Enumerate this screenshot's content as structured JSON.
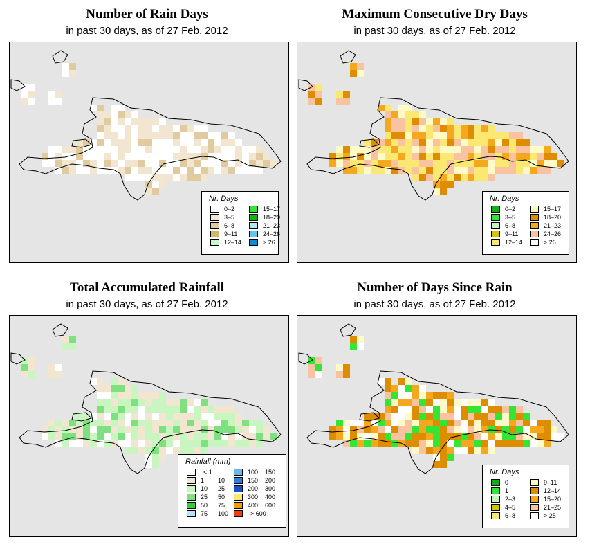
{
  "panels": [
    {
      "title": "Number of Rain Days",
      "subtitle": "in past 30 days, as of  27 Feb. 2012",
      "legend_title": "Nr. Days",
      "legend": [
        {
          "label": "0–2",
          "color": "#ffffff"
        },
        {
          "label": "3–5",
          "color": "#f2e6d0"
        },
        {
          "label": "6–8",
          "color": "#e0cba0"
        },
        {
          "label": "9–11",
          "color": "#d2b86b"
        },
        {
          "label": "12–14",
          "color": "#ccf7cc"
        },
        {
          "label": "15–17",
          "color": "#33e633"
        },
        {
          "label": "18–20",
          "color": "#11b511"
        },
        {
          "label": "21–23",
          "color": "#b3e5f5"
        },
        {
          "label": "24–26",
          "color": "#66c2ee"
        },
        {
          "label": "> 26",
          "color": "#0a8ed1"
        }
      ]
    },
    {
      "title": "Maximum Consecutive Dry Days",
      "subtitle": "in past 30 days, as of  27 Feb. 2012",
      "legend_title": "Nr. Days",
      "legend": [
        {
          "label": "0–2",
          "color": "#10b010"
        },
        {
          "label": "3–5",
          "color": "#33e633"
        },
        {
          "label": "6–8",
          "color": "#c6f5c6"
        },
        {
          "label": "9–11",
          "color": "#d4c400"
        },
        {
          "label": "12–14",
          "color": "#fae873"
        },
        {
          "label": "15–17",
          "color": "#fffac8"
        },
        {
          "label": "18–20",
          "color": "#de8c00"
        },
        {
          "label": "21–23",
          "color": "#f4a81e"
        },
        {
          "label": "24–26",
          "color": "#f9c2a0"
        },
        {
          "label": "> 26",
          "color": "#ffffff"
        }
      ]
    },
    {
      "title": "Total Accumulated Rainfall",
      "subtitle": "in past 30 days, as of  27 Feb. 2012",
      "legend_title": "Rainfall (mm)",
      "legend": [
        {
          "lo": "",
          "hi": "< 1",
          "color": "#ffffff"
        },
        {
          "lo": "1",
          "hi": "10",
          "color": "#f2e6d0"
        },
        {
          "lo": "10",
          "hi": "25",
          "color": "#c8f5c0"
        },
        {
          "lo": "25",
          "hi": "50",
          "color": "#7fe07f"
        },
        {
          "lo": "50",
          "hi": "75",
          "color": "#33cc33"
        },
        {
          "lo": "75",
          "hi": "100",
          "color": "#b3e5f5"
        },
        {
          "lo": "100",
          "hi": "150",
          "color": "#66b8ee"
        },
        {
          "lo": "150",
          "hi": "200",
          "color": "#2a7fe0"
        },
        {
          "lo": "200",
          "hi": "300",
          "color": "#1450c8"
        },
        {
          "lo": "300",
          "hi": "400",
          "color": "#fae873"
        },
        {
          "lo": "400",
          "hi": "600",
          "color": "#f59a00"
        },
        {
          "lo": "",
          "hi": "> 600",
          "color": "#f03c14"
        }
      ]
    },
    {
      "title": "Number of Days Since Rain",
      "subtitle": "in past 30 days, as of  27 Feb. 2012",
      "legend_title": "Nr. Days",
      "legend": [
        {
          "label": "0",
          "color": "#10b010"
        },
        {
          "label": "1",
          "color": "#33e633"
        },
        {
          "label": "2–3",
          "color": "#c6f5c6"
        },
        {
          "label": "4–5",
          "color": "#d4c400"
        },
        {
          "label": "6–8",
          "color": "#fae873"
        },
        {
          "label": "9–11",
          "color": "#fffac8"
        },
        {
          "label": "12–14",
          "color": "#de8c00"
        },
        {
          "label": "15–20",
          "color": "#f4a81e"
        },
        {
          "label": "21–25",
          "color": "#f9c2a0"
        },
        {
          "label": "> 25",
          "color": "#ffffff"
        }
      ]
    }
  ],
  "grids": [
    {
      "rows": [
        "........................................",
        "......1.................................",
        "......11................................",
        "........................................",
        "1.......................................",
        "1...1...................................",
        "11..11..........................................",
        ".....................11.................",
        "...........00000.......................",
        "...........000000000001111..............",
        "...........000000001112000111...........",
        "...........0000000001111000001111.......",
        "........0000000000111000010000111......",
        "....11111000000000000000000001111111...",
        "...1111.11000011000000000000111111111..",
        "...0000000000000000000000000000000000..",
        ".....00000000000000000000000000000.....",
        "...............000000000000............",
        "..................000..................",
        "..................11...................",
        "........................................"
      ]
    }
  ]
}
